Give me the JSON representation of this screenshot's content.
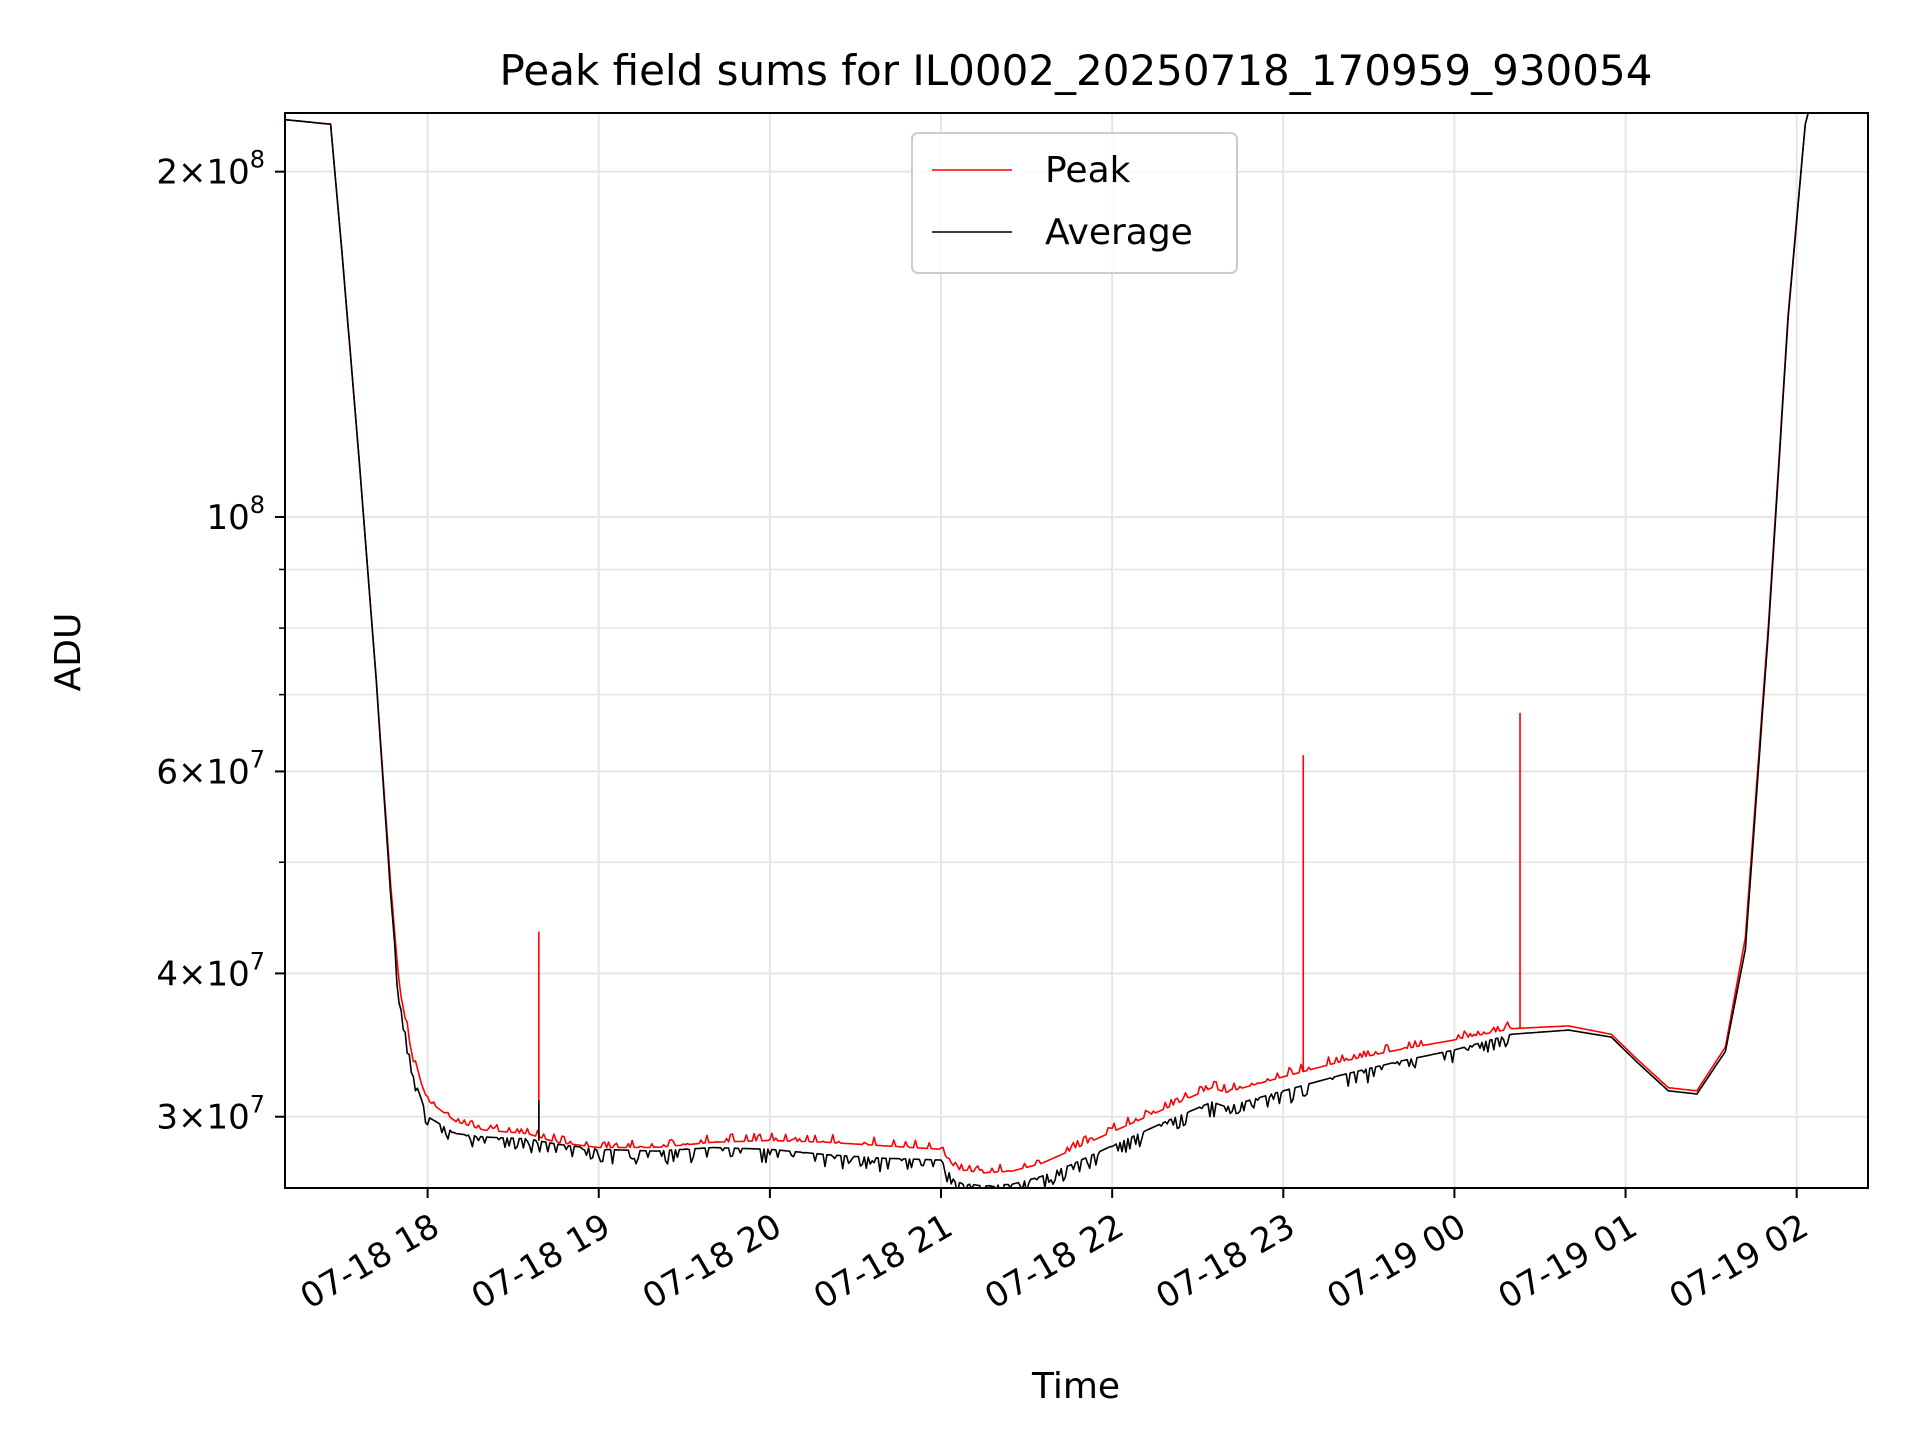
{
  "chart_data": {
    "type": "line",
    "title": "Peak field sums for IL0002_20250718_170959_930054",
    "xlabel": "Time",
    "ylabel": "ADU",
    "yscale": "log",
    "ylim": [
      26000000,
      225000000
    ],
    "xlim": [
      "2025-07-18 17:10",
      "2025-07-19 02:25"
    ],
    "grid": true,
    "legend": "upper center",
    "x_ticks": [
      {
        "t": "2025-07-18 18:00",
        "label": "07-18 18"
      },
      {
        "t": "2025-07-18 19:00",
        "label": "07-18 19"
      },
      {
        "t": "2025-07-18 20:00",
        "label": "07-18 20"
      },
      {
        "t": "2025-07-18 21:00",
        "label": "07-18 21"
      },
      {
        "t": "2025-07-18 22:00",
        "label": "07-18 22"
      },
      {
        "t": "2025-07-18 23:00",
        "label": "07-18 23"
      },
      {
        "t": "2025-07-19 00:00",
        "label": "07-19 00"
      },
      {
        "t": "2025-07-19 01:00",
        "label": "07-19 01"
      },
      {
        "t": "2025-07-19 02:00",
        "label": "07-19 02"
      }
    ],
    "y_ticks": [
      {
        "v": 30000000,
        "mant": "3",
        "exp": "7"
      },
      {
        "v": 40000000,
        "mant": "4",
        "exp": "7"
      },
      {
        "v": 60000000,
        "mant": "6",
        "exp": "7"
      },
      {
        "v": 100000000,
        "mant": "",
        "exp": "8"
      },
      {
        "v": 200000000,
        "mant": "2",
        "exp": "8"
      }
    ],
    "series": [
      {
        "name": "Peak",
        "color": "#ff0000",
        "points": [
          [
            "2025-07-18 17:10",
            222000000
          ],
          [
            "2025-07-18 17:18",
            221000000
          ],
          [
            "2025-07-18 17:26",
            220000000
          ],
          [
            "2025-07-18 17:30",
            170000000
          ],
          [
            "2025-07-18 17:36",
            112000000
          ],
          [
            "2025-07-18 17:42",
            72000000
          ],
          [
            "2025-07-18 17:47",
            48000000
          ],
          [
            "2025-07-18 17:50",
            39000000
          ],
          [
            "2025-07-18 17:55",
            33500000
          ],
          [
            "2025-07-18 18:00",
            31000000
          ],
          [
            "2025-07-18 18:10",
            29700000
          ],
          [
            "2025-07-18 18:20",
            29200000
          ],
          [
            "2025-07-18 18:35",
            29000000
          ],
          [
            "2025-07-18 18:45",
            28500000
          ],
          [
            "2025-07-18 19:00",
            28200000
          ],
          [
            "2025-07-18 19:20",
            28200000
          ],
          [
            "2025-07-18 19:40",
            28500000
          ],
          [
            "2025-07-18 20:00",
            28600000
          ],
          [
            "2025-07-18 20:20",
            28500000
          ],
          [
            "2025-07-18 20:40",
            28300000
          ],
          [
            "2025-07-18 21:00",
            28100000
          ],
          [
            "2025-07-18 21:05",
            27000000
          ],
          [
            "2025-07-18 21:15",
            26800000
          ],
          [
            "2025-07-18 21:25",
            26900000
          ],
          [
            "2025-07-18 21:35",
            27300000
          ],
          [
            "2025-07-18 21:45",
            28000000
          ],
          [
            "2025-07-18 22:00",
            29100000
          ],
          [
            "2025-07-18 22:20",
            30600000
          ],
          [
            "2025-07-18 22:35",
            31800000
          ],
          [
            "2025-07-18 22:40",
            31500000
          ],
          [
            "2025-07-18 23:00",
            32500000
          ],
          [
            "2025-07-18 23:20",
            33500000
          ],
          [
            "2025-07-18 23:40",
            34300000
          ],
          [
            "2025-07-19 00:00",
            35000000
          ],
          [
            "2025-07-19 00:20",
            35800000
          ],
          [
            "2025-07-19 00:40",
            36000000
          ],
          [
            "2025-07-19 00:55",
            35400000
          ],
          [
            "2025-07-19 01:05",
            33500000
          ],
          [
            "2025-07-19 01:15",
            31800000
          ],
          [
            "2025-07-19 01:25",
            31600000
          ],
          [
            "2025-07-19 01:35",
            34500000
          ],
          [
            "2025-07-19 01:42",
            43000000
          ],
          [
            "2025-07-19 01:50",
            80000000
          ],
          [
            "2025-07-19 01:57",
            150000000
          ],
          [
            "2025-07-19 02:03",
            220000000
          ],
          [
            "2025-07-19 02:05",
            230000000
          ]
        ],
        "spikes": [
          {
            "t": "2025-07-18 18:39",
            "v": 43500000
          },
          {
            "t": "2025-07-18 23:07",
            "v": 62000000
          },
          {
            "t": "2025-07-19 00:23",
            "v": 67500000
          }
        ]
      },
      {
        "name": "Average",
        "color": "#000000",
        "points": [
          [
            "2025-07-18 17:10",
            222000000
          ],
          [
            "2025-07-18 17:18",
            221000000
          ],
          [
            "2025-07-18 17:26",
            220000000
          ],
          [
            "2025-07-18 17:30",
            170000000
          ],
          [
            "2025-07-18 17:36",
            112000000
          ],
          [
            "2025-07-18 17:42",
            72000000
          ],
          [
            "2025-07-18 17:47",
            47000000
          ],
          [
            "2025-07-18 17:50",
            38000000
          ],
          [
            "2025-07-18 17:55",
            32500000
          ],
          [
            "2025-07-18 18:00",
            30000000
          ],
          [
            "2025-07-18 18:10",
            29000000
          ],
          [
            "2025-07-18 18:20",
            28800000
          ],
          [
            "2025-07-18 18:35",
            28700000
          ],
          [
            "2025-07-18 18:45",
            28400000
          ],
          [
            "2025-07-18 19:00",
            28100000
          ],
          [
            "2025-07-18 19:20",
            28000000
          ],
          [
            "2025-07-18 19:40",
            28200000
          ],
          [
            "2025-07-18 20:00",
            28100000
          ],
          [
            "2025-07-18 20:20",
            27800000
          ],
          [
            "2025-07-18 20:40",
            27600000
          ],
          [
            "2025-07-18 21:00",
            27500000
          ],
          [
            "2025-07-18 21:05",
            26300000
          ],
          [
            "2025-07-18 21:15",
            26100000
          ],
          [
            "2025-07-18 21:25",
            26200000
          ],
          [
            "2025-07-18 21:35",
            26600000
          ],
          [
            "2025-07-18 21:45",
            27200000
          ],
          [
            "2025-07-18 22:00",
            28300000
          ],
          [
            "2025-07-18 22:20",
            29800000
          ],
          [
            "2025-07-18 22:35",
            30900000
          ],
          [
            "2025-07-18 22:40",
            30600000
          ],
          [
            "2025-07-18 23:00",
            31600000
          ],
          [
            "2025-07-18 23:20",
            32600000
          ],
          [
            "2025-07-18 23:40",
            33500000
          ],
          [
            "2025-07-19 00:00",
            34300000
          ],
          [
            "2025-07-19 00:20",
            35400000
          ],
          [
            "2025-07-19 00:40",
            35700000
          ],
          [
            "2025-07-19 00:55",
            35200000
          ],
          [
            "2025-07-19 01:05",
            33300000
          ],
          [
            "2025-07-19 01:15",
            31600000
          ],
          [
            "2025-07-19 01:25",
            31400000
          ],
          [
            "2025-07-19 01:35",
            34200000
          ],
          [
            "2025-07-19 01:42",
            42000000
          ],
          [
            "2025-07-19 01:50",
            79000000
          ],
          [
            "2025-07-19 01:57",
            149000000
          ],
          [
            "2025-07-19 02:03",
            220000000
          ],
          [
            "2025-07-19 02:05",
            230000000
          ]
        ],
        "spikes": [
          {
            "t": "2025-07-18 18:39",
            "v": 31000000
          }
        ]
      }
    ]
  }
}
